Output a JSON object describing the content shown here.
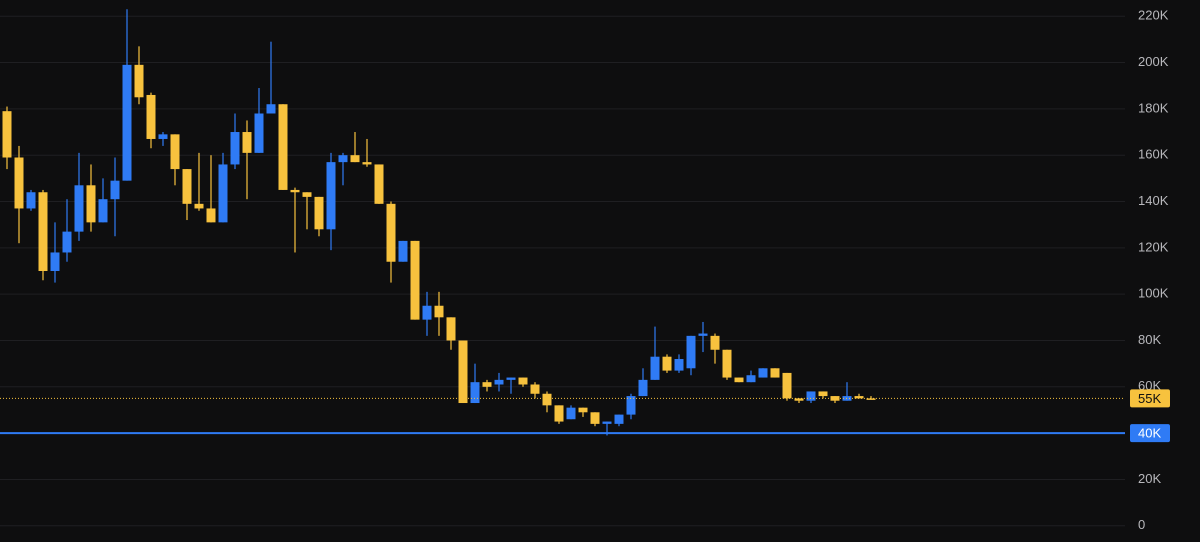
{
  "chart_data": {
    "type": "candlestick",
    "open": [
      179000,
      159000,
      137000,
      144000,
      110000,
      118000,
      127000,
      147000,
      131000,
      141000,
      149000,
      199000,
      186000,
      167000,
      169000,
      154000,
      139000,
      137000,
      131000,
      156000,
      170000,
      161000,
      178000,
      182000,
      145000,
      144000,
      142000,
      128000,
      157000,
      160000,
      157000,
      156000,
      139000,
      114000,
      123000,
      89000,
      95000,
      90000,
      80000,
      53000,
      62000,
      61000,
      63000,
      64000,
      61000,
      57000,
      52000,
      46000,
      51000,
      49000,
      44000,
      44000,
      48000,
      56000,
      63000,
      73000,
      67000,
      68000,
      82000,
      82000,
      76000,
      64000,
      62000,
      64000,
      68000,
      66000,
      55000,
      54000,
      58000,
      56000,
      54000,
      56000,
      55000
    ],
    "high": [
      181000,
      164000,
      145000,
      145000,
      131000,
      141000,
      161000,
      156000,
      150000,
      159000,
      223000,
      207000,
      187000,
      170000,
      169000,
      154000,
      161000,
      160000,
      161000,
      178000,
      175000,
      189000,
      209000,
      182000,
      146000,
      144000,
      142000,
      161000,
      161000,
      170000,
      167000,
      156000,
      140000,
      123000,
      123000,
      101000,
      101000,
      90000,
      80000,
      70000,
      63000,
      66000,
      64000,
      64000,
      62000,
      58000,
      52000,
      52000,
      51000,
      49000,
      45000,
      48000,
      57000,
      68000,
      86000,
      74000,
      74000,
      82000,
      88000,
      83000,
      76000,
      64000,
      67000,
      68000,
      68000,
      66000,
      55000,
      58000,
      58000,
      56000,
      62000,
      57000,
      56000
    ],
    "low": [
      154000,
      122000,
      136000,
      106000,
      105000,
      114000,
      123000,
      127000,
      131000,
      125000,
      149000,
      182000,
      163000,
      164000,
      147000,
      132000,
      136000,
      131000,
      131000,
      154000,
      141000,
      161000,
      178000,
      145000,
      118000,
      128000,
      125000,
      119000,
      147000,
      157000,
      155000,
      139000,
      105000,
      114000,
      89000,
      82000,
      82000,
      76000,
      53000,
      53000,
      58000,
      58000,
      57000,
      60000,
      55000,
      49000,
      44000,
      46000,
      47000,
      43000,
      39000,
      43000,
      46000,
      56000,
      63000,
      66000,
      66000,
      65000,
      75000,
      70000,
      63000,
      62000,
      62000,
      64000,
      64000,
      54000,
      53000,
      53000,
      55000,
      53000,
      54000,
      55000,
      55000
    ],
    "close": [
      159000,
      137000,
      144000,
      110000,
      118000,
      127000,
      147000,
      131000,
      141000,
      149000,
      199000,
      185000,
      167000,
      169000,
      154000,
      139000,
      137000,
      131000,
      156000,
      170000,
      161000,
      178000,
      182000,
      145000,
      144000,
      142000,
      128000,
      157000,
      160000,
      157000,
      156000,
      139000,
      114000,
      123000,
      89000,
      95000,
      90000,
      80000,
      53000,
      62000,
      60000,
      63000,
      64000,
      61000,
      57000,
      52000,
      45000,
      51000,
      49000,
      44000,
      45000,
      48000,
      56000,
      63000,
      73000,
      67000,
      72000,
      82000,
      83000,
      76000,
      64000,
      62000,
      65000,
      68000,
      64000,
      55000,
      54000,
      58000,
      56000,
      54000,
      56000,
      55000,
      55000
    ],
    "up_color": "#2f7bf5",
    "down_color": "#f7c23e",
    "ylim": [
      -7000,
      227000
    ],
    "yticks": [
      0,
      {
        "value": 20000,
        "label": "20K"
      },
      {
        "value": 40000,
        "label": "40K"
      },
      {
        "value": 60000,
        "label": "60K"
      },
      {
        "value": 80000,
        "label": "80K"
      },
      {
        "value": 100000,
        "label": "100K"
      },
      {
        "value": 120000,
        "label": "120K"
      },
      {
        "value": 140000,
        "label": "140K"
      },
      {
        "value": 160000,
        "label": "160K"
      },
      {
        "value": 180000,
        "label": "180K"
      },
      {
        "value": 200000,
        "label": "200K"
      },
      {
        "value": 220000,
        "label": "220K"
      }
    ],
    "grid": true,
    "reference_lines": [
      {
        "value": 55000,
        "label": "55K",
        "color": "#f7c23e",
        "style": "dotted",
        "text_color": "#111111"
      },
      {
        "value": 40000,
        "label": "40K",
        "color": "#2f7bf5",
        "style": "solid",
        "text_color": "#ffffff"
      }
    ]
  }
}
